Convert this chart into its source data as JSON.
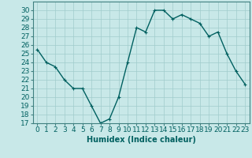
{
  "x": [
    0,
    1,
    2,
    3,
    4,
    5,
    6,
    7,
    8,
    9,
    10,
    11,
    12,
    13,
    14,
    15,
    16,
    17,
    18,
    19,
    20,
    21,
    22,
    23
  ],
  "y": [
    25.5,
    24.0,
    23.5,
    22.0,
    21.0,
    21.0,
    19.0,
    17.0,
    17.5,
    20.0,
    24.0,
    28.0,
    27.5,
    30.0,
    30.0,
    29.0,
    29.5,
    29.0,
    28.5,
    27.0,
    27.5,
    25.0,
    23.0,
    21.5
  ],
  "line_color": "#006060",
  "marker": "+",
  "bg_color": "#c8e8e8",
  "grid_color": "#a0cccc",
  "xlabel": "Humidex (Indice chaleur)",
  "ylim": [
    17,
    31
  ],
  "xlim": [
    -0.5,
    23.5
  ],
  "yticks": [
    17,
    18,
    19,
    20,
    21,
    22,
    23,
    24,
    25,
    26,
    27,
    28,
    29,
    30
  ],
  "xticks": [
    0,
    1,
    2,
    3,
    4,
    5,
    6,
    7,
    8,
    9,
    10,
    11,
    12,
    13,
    14,
    15,
    16,
    17,
    18,
    19,
    20,
    21,
    22,
    23
  ],
  "xlabel_fontsize": 7,
  "tick_fontsize": 6.5,
  "linewidth": 1.0,
  "markersize": 3,
  "spine_color": "#408080"
}
